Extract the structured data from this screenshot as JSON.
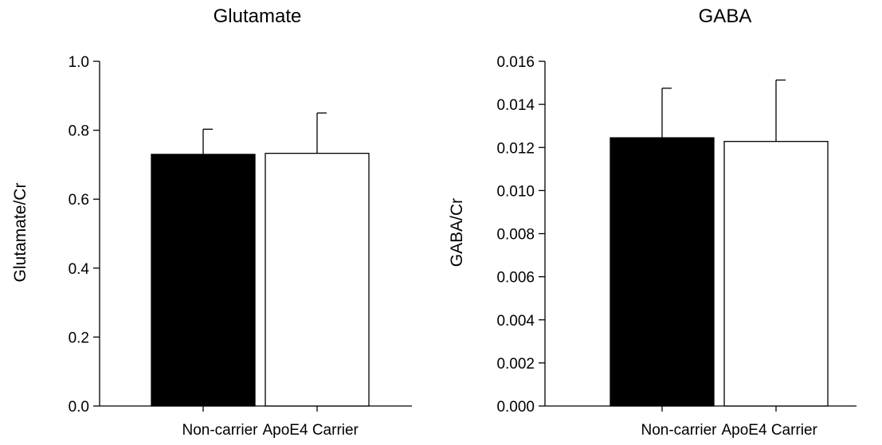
{
  "chart_data": [
    {
      "type": "bar",
      "title": "Glutamate",
      "xlabel": "",
      "ylabel": "Glutamate/Cr",
      "categories": [
        "Non-carrier",
        "ApoE4 Carrier"
      ],
      "values": [
        0.73,
        0.733
      ],
      "error_upper": [
        0.073,
        0.117
      ],
      "ylim": [
        0,
        1.0
      ],
      "yticks": [
        "0.0",
        "0.2",
        "0.4",
        "0.6",
        "0.8",
        "1.0"
      ],
      "bar_colors": [
        "#000000",
        "#ffffff"
      ],
      "grid": false,
      "legend": "none"
    },
    {
      "type": "bar",
      "title": "GABA",
      "xlabel": "",
      "ylabel": "GABA/Cr",
      "categories": [
        "Non-carrier",
        "ApoE4 Carrier"
      ],
      "values": [
        0.01245,
        0.01228
      ],
      "error_upper": [
        0.0023,
        0.00285
      ],
      "ylim": [
        0,
        0.016
      ],
      "yticks": [
        "0.000",
        "0.002",
        "0.004",
        "0.006",
        "0.008",
        "0.010",
        "0.012",
        "0.014",
        "0.016"
      ],
      "bar_colors": [
        "#000000",
        "#ffffff"
      ],
      "grid": false,
      "legend": "none"
    }
  ]
}
